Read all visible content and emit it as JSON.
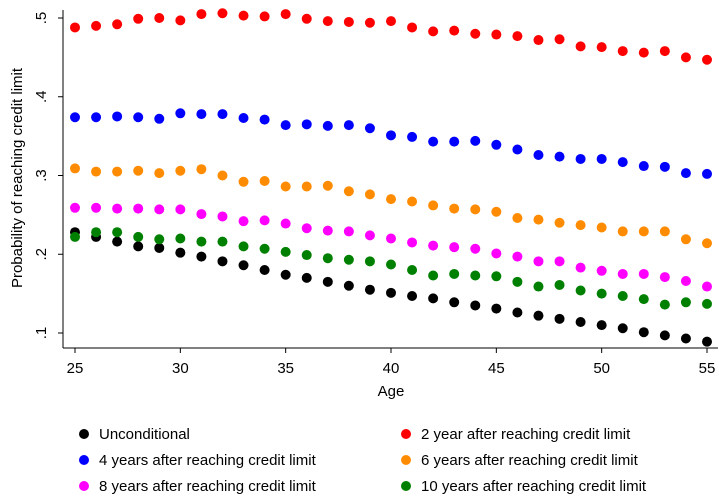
{
  "chart_data": {
    "type": "scatter",
    "xlabel": "Age",
    "ylabel": "Probability of reaching credit limit",
    "xlim": [
      25,
      55
    ],
    "ylim": [
      0.1,
      0.5
    ],
    "xticks": [
      {
        "value": 25,
        "label": "25"
      },
      {
        "value": 30,
        "label": "30"
      },
      {
        "value": 35,
        "label": "35"
      },
      {
        "value": 40,
        "label": "40"
      },
      {
        "value": 45,
        "label": "45"
      },
      {
        "value": 50,
        "label": "50"
      },
      {
        "value": 55,
        "label": "55"
      }
    ],
    "yticks": [
      {
        "value": 0.1,
        "label": ".1"
      },
      {
        "value": 0.2,
        "label": ".2"
      },
      {
        "value": 0.3,
        "label": ".3"
      },
      {
        "value": 0.4,
        "label": ".4"
      },
      {
        "value": 0.5,
        "label": ".5"
      }
    ],
    "grid": false,
    "legend_position": "bottom",
    "x": [
      25,
      26,
      27,
      28,
      29,
      30,
      31,
      32,
      33,
      34,
      35,
      36,
      37,
      38,
      39,
      40,
      41,
      42,
      43,
      44,
      45,
      46,
      47,
      48,
      49,
      50,
      51,
      52,
      53,
      54,
      55
    ],
    "series": [
      {
        "name": "Unconditional",
        "color": "#000000",
        "values": [
          0.228,
          0.222,
          0.216,
          0.21,
          0.208,
          0.202,
          0.197,
          0.191,
          0.186,
          0.18,
          0.174,
          0.17,
          0.165,
          0.16,
          0.155,
          0.151,
          0.147,
          0.144,
          0.139,
          0.135,
          0.131,
          0.126,
          0.122,
          0.118,
          0.114,
          0.11,
          0.106,
          0.101,
          0.097,
          0.093,
          0.089
        ]
      },
      {
        "name": "2 year after reaching credit limit",
        "color": "#ff0000",
        "values": [
          0.488,
          0.49,
          0.492,
          0.499,
          0.5,
          0.497,
          0.505,
          0.506,
          0.503,
          0.502,
          0.505,
          0.499,
          0.496,
          0.495,
          0.494,
          0.496,
          0.488,
          0.483,
          0.484,
          0.48,
          0.479,
          0.477,
          0.472,
          0.473,
          0.464,
          0.463,
          0.458,
          0.456,
          0.458,
          0.45,
          0.447
        ]
      },
      {
        "name": "4 years after reaching credit limit",
        "color": "#0000ff",
        "values": [
          0.374,
          0.374,
          0.375,
          0.374,
          0.372,
          0.379,
          0.378,
          0.378,
          0.373,
          0.371,
          0.364,
          0.365,
          0.363,
          0.364,
          0.36,
          0.351,
          0.349,
          0.343,
          0.343,
          0.344,
          0.339,
          0.333,
          0.326,
          0.324,
          0.321,
          0.321,
          0.317,
          0.312,
          0.311,
          0.303,
          0.302
        ]
      },
      {
        "name": "6 years after reaching credit limit",
        "color": "#ff8c00",
        "values": [
          0.309,
          0.305,
          0.305,
          0.306,
          0.303,
          0.306,
          0.308,
          0.3,
          0.292,
          0.293,
          0.286,
          0.286,
          0.287,
          0.28,
          0.276,
          0.27,
          0.267,
          0.262,
          0.258,
          0.257,
          0.254,
          0.246,
          0.244,
          0.24,
          0.237,
          0.234,
          0.229,
          0.229,
          0.229,
          0.219,
          0.214
        ]
      },
      {
        "name": "8 years after reaching credit limit",
        "color": "#ff00ff",
        "values": [
          0.259,
          0.259,
          0.258,
          0.258,
          0.257,
          0.257,
          0.251,
          0.248,
          0.242,
          0.243,
          0.239,
          0.233,
          0.23,
          0.229,
          0.224,
          0.22,
          0.215,
          0.211,
          0.209,
          0.207,
          0.201,
          0.197,
          0.191,
          0.191,
          0.183,
          0.179,
          0.175,
          0.175,
          0.171,
          0.166,
          0.159
        ]
      },
      {
        "name": "10 years after reaching credit limit",
        "color": "#008000",
        "values": [
          0.222,
          0.228,
          0.228,
          0.222,
          0.219,
          0.22,
          0.216,
          0.216,
          0.21,
          0.207,
          0.203,
          0.199,
          0.195,
          0.193,
          0.191,
          0.187,
          0.18,
          0.173,
          0.175,
          0.173,
          0.172,
          0.165,
          0.159,
          0.161,
          0.154,
          0.15,
          0.147,
          0.143,
          0.136,
          0.139,
          0.137
        ]
      }
    ],
    "legend": [
      {
        "label": "Unconditional",
        "color": "#000000"
      },
      {
        "label": "2 year after reaching credit limit",
        "color": "#ff0000"
      },
      {
        "label": "4 years after reaching credit limit",
        "color": "#0000ff"
      },
      {
        "label": "6 years after reaching credit limit",
        "color": "#ff8c00"
      },
      {
        "label": "8 years after reaching credit limit",
        "color": "#ff00ff"
      },
      {
        "label": "10 years after reaching credit limit",
        "color": "#008000"
      }
    ]
  }
}
